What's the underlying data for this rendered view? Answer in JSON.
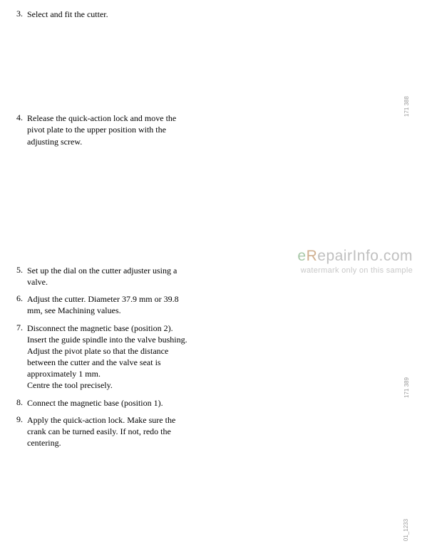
{
  "steps": {
    "s3": {
      "number": "3.",
      "text": "Select and fit the cutter."
    },
    "s4": {
      "number": "4.",
      "text": "Release the quick-action lock and move the pivot plate to the upper position with the adjusting screw."
    },
    "s5": {
      "number": "5.",
      "text": "Set up the dial on the cutter adjuster using a valve."
    },
    "s6": {
      "number": "6.",
      "text": "Adjust the cutter. Diameter 37.9 mm or 39.8 mm, see Machining values."
    },
    "s7": {
      "number": "7.",
      "text": "Disconnect the magnetic base (position 2). Insert the guide spindle into the valve bushing. Adjust the pivot plate so that the distance between the cutter and the valve seat is approximately 1 mm.\nCentre the tool precisely."
    },
    "s8": {
      "number": "8.",
      "text": "Connect the magnetic base (position 1)."
    },
    "s9": {
      "number": "9.",
      "text": "Apply the quick-action lock. Make sure the crank can be turned easily. If not, redo the centering."
    }
  },
  "watermark": {
    "brand_e": "e",
    "brand_r": "R",
    "brand_rest": "epairInfo.com",
    "subtext": "watermark only on this sample"
  },
  "figure_labels": {
    "f1": "171 388",
    "f3": "171 389",
    "f4": "01_1233"
  }
}
